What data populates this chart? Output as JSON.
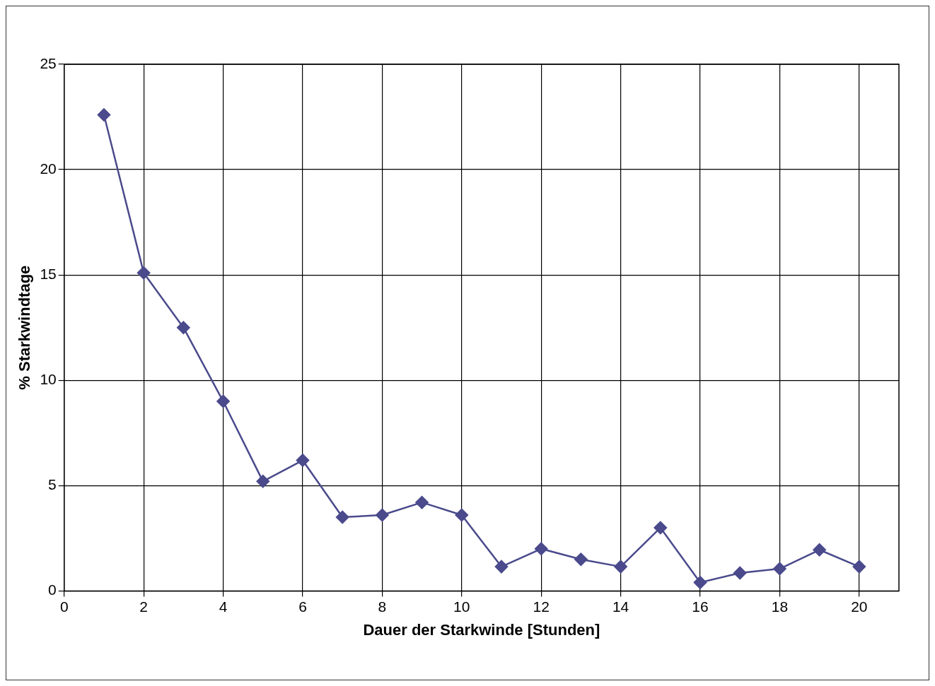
{
  "chart_data": {
    "type": "line",
    "xlabel": "Dauer der Starkwinde [Stunden]",
    "ylabel": "% Starkwindtage",
    "x": [
      1,
      2,
      3,
      4,
      5,
      6,
      7,
      8,
      9,
      10,
      11,
      12,
      13,
      14,
      15,
      16,
      17,
      18,
      19,
      20
    ],
    "series": [
      {
        "color": "#4a4a8c",
        "values": [
          22.6,
          15.1,
          12.5,
          9.0,
          5.2,
          6.2,
          3.5,
          3.6,
          4.2,
          3.6,
          1.15,
          2.0,
          1.5,
          1.15,
          3.0,
          0.4,
          0.85,
          1.05,
          1.95,
          1.15
        ]
      }
    ],
    "xlim": [
      0,
      21
    ],
    "xticks": [
      0,
      2,
      4,
      6,
      8,
      10,
      12,
      14,
      16,
      18,
      20
    ],
    "ylim": [
      0,
      25
    ],
    "yticks": [
      0,
      5,
      10,
      15,
      20,
      25
    ],
    "grid": true,
    "legend": false,
    "marker": "diamond",
    "line_style": "solid"
  }
}
